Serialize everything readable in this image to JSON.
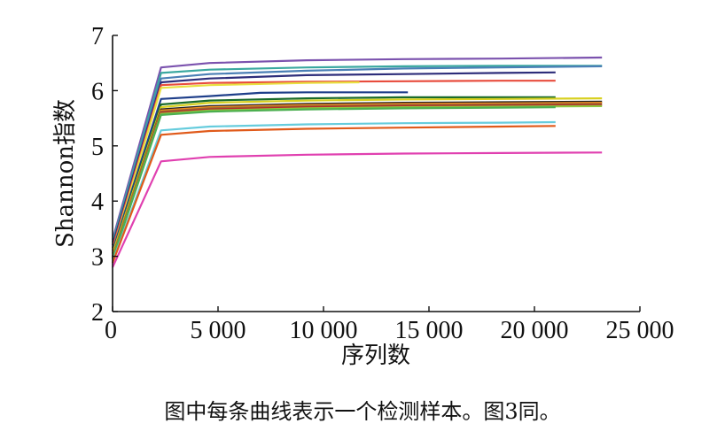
{
  "caption": "图中每条曲线表示一个检测样本。图3同。",
  "chart_data": {
    "type": "line",
    "xlabel": "序列数",
    "ylabel": "Shannon指数",
    "xlim": [
      0,
      25000
    ],
    "ylim": [
      2,
      7
    ],
    "xticks": [
      0,
      5000,
      10000,
      15000,
      20000,
      25000
    ],
    "xtick_labels": [
      "0",
      "5 000",
      "10 000",
      "15 000",
      "20 000",
      "25 000"
    ],
    "yticks": [
      2,
      3,
      4,
      5,
      6,
      7
    ],
    "ytick_labels": [
      "2",
      "3",
      "4",
      "5",
      "6",
      "7"
    ],
    "grid": false,
    "legend": "none",
    "series": [
      {
        "color": "#7b52ae",
        "x": [
          0,
          2300,
          4600,
          9200,
          13800,
          18400,
          23200
        ],
        "y": [
          3.3,
          6.42,
          6.5,
          6.55,
          6.57,
          6.58,
          6.6
        ]
      },
      {
        "color": "#3aa8a0",
        "x": [
          0,
          2300,
          4600,
          9200,
          13800,
          18400,
          23200
        ],
        "y": [
          3.25,
          6.32,
          6.38,
          6.42,
          6.44,
          6.45,
          6.45
        ]
      },
      {
        "color": "#4a7fb5",
        "x": [
          0,
          2300,
          4600,
          9200,
          13800,
          18400,
          23200
        ],
        "y": [
          3.2,
          6.22,
          6.3,
          6.36,
          6.4,
          6.42,
          6.44
        ]
      },
      {
        "color": "#2d2d7a",
        "x": [
          0,
          2300,
          4600,
          9200,
          13800,
          18400,
          21000
        ],
        "y": [
          3.2,
          6.15,
          6.22,
          6.28,
          6.3,
          6.32,
          6.33
        ]
      },
      {
        "color": "#e84c3d",
        "x": [
          0,
          2300,
          4600,
          9200,
          13800,
          18400,
          21000
        ],
        "y": [
          3.15,
          6.1,
          6.14,
          6.16,
          6.17,
          6.18,
          6.18
        ]
      },
      {
        "color": "#e8e040",
        "x": [
          0,
          2300,
          4600,
          9200,
          11700
        ],
        "y": [
          3.1,
          6.05,
          6.1,
          6.14,
          6.15
        ]
      },
      {
        "color": "#1f3f8a",
        "x": [
          0,
          2300,
          4600,
          7000,
          9200,
          14000
        ],
        "y": [
          3.1,
          5.85,
          5.9,
          5.96,
          5.97,
          5.97
        ]
      },
      {
        "color": "#1a6b2a",
        "x": [
          0,
          2300,
          4600,
          9200,
          13800,
          18400,
          21000
        ],
        "y": [
          3.05,
          5.75,
          5.82,
          5.86,
          5.88,
          5.88,
          5.88
        ]
      },
      {
        "color": "#d8d020",
        "x": [
          0,
          2300,
          4600,
          9200,
          13800,
          18400,
          23200
        ],
        "y": [
          3.05,
          5.7,
          5.78,
          5.82,
          5.84,
          5.85,
          5.86
        ]
      },
      {
        "color": "#222222",
        "x": [
          0,
          2300,
          4600,
          9200,
          13800,
          18400,
          23200
        ],
        "y": [
          3.0,
          5.66,
          5.72,
          5.76,
          5.78,
          5.79,
          5.8
        ]
      },
      {
        "color": "#f08a20",
        "x": [
          0,
          2300,
          4600,
          9200,
          13800,
          18400,
          23200
        ],
        "y": [
          3.0,
          5.64,
          5.7,
          5.74,
          5.76,
          5.77,
          5.78
        ]
      },
      {
        "color": "#9a6b30",
        "x": [
          0,
          2300,
          4600,
          9200,
          13800,
          18400,
          23200
        ],
        "y": [
          2.98,
          5.62,
          5.68,
          5.72,
          5.74,
          5.75,
          5.76
        ]
      },
      {
        "color": "#b52a2a",
        "x": [
          0,
          2300,
          4600,
          9200,
          13800,
          18400,
          23200
        ],
        "y": [
          2.97,
          5.6,
          5.66,
          5.7,
          5.72,
          5.73,
          5.74
        ]
      },
      {
        "color": "#8dc63f",
        "x": [
          0,
          2300,
          4600,
          9200,
          13800,
          18400,
          23200
        ],
        "y": [
          2.96,
          5.58,
          5.64,
          5.68,
          5.7,
          5.71,
          5.72
        ]
      },
      {
        "color": "#4caf50",
        "x": [
          0,
          2300,
          4600,
          9200,
          13800,
          18400,
          21000
        ],
        "y": [
          2.95,
          5.56,
          5.62,
          5.66,
          5.68,
          5.69,
          5.7
        ]
      },
      {
        "color": "#66ccdd",
        "x": [
          0,
          2300,
          4600,
          9200,
          13800,
          18400,
          21000
        ],
        "y": [
          2.9,
          5.28,
          5.35,
          5.39,
          5.41,
          5.42,
          5.43
        ]
      },
      {
        "color": "#e05a1a",
        "x": [
          0,
          2300,
          4600,
          9200,
          13800,
          18400,
          21000
        ],
        "y": [
          2.88,
          5.2,
          5.27,
          5.31,
          5.33,
          5.35,
          5.36
        ]
      },
      {
        "color": "#e040b0",
        "x": [
          0,
          2300,
          4600,
          9200,
          13800,
          18400,
          23200
        ],
        "y": [
          2.8,
          4.72,
          4.8,
          4.84,
          4.86,
          4.87,
          4.88
        ]
      }
    ]
  }
}
